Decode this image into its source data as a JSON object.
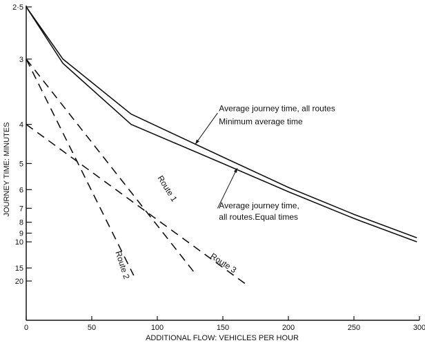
{
  "chart_data": {
    "type": "line",
    "xlabel": "ADDITIONAL FLOW: VEHICLES PER HOUR",
    "ylabel": "JOURNEY TIME: MINUTES",
    "xlim": [
      0,
      300
    ],
    "ylim": [
      2.5,
      20
    ],
    "y_scale": "reciprocal",
    "grid": false,
    "x_ticks": [
      0,
      50,
      100,
      150,
      200,
      250,
      300
    ],
    "x_tick_labels": [
      "0",
      "50",
      "100",
      "150",
      "200",
      "250",
      "300"
    ],
    "y_ticks": [
      2.5,
      3,
      4,
      5,
      6,
      7,
      8,
      9,
      10,
      15,
      20
    ],
    "y_tick_labels": [
      "2·5",
      "3",
      "4",
      "5",
      "6",
      "7",
      "8",
      "9",
      "10",
      "15",
      "20"
    ],
    "series": [
      {
        "name": "Route 1",
        "style": "dashed",
        "x": [
          0,
          130
        ],
        "y": [
          3,
          17.5
        ]
      },
      {
        "name": "Route 2",
        "style": "dashed",
        "x": [
          0,
          82
        ],
        "y": [
          3,
          17.5
        ]
      },
      {
        "name": "Route 3",
        "style": "dashed",
        "x": [
          0,
          168
        ],
        "y": [
          4,
          22
        ]
      },
      {
        "name": "Average journey time, all routes Minimum average time",
        "style": "solid",
        "x": [
          0,
          28,
          80,
          150,
          200,
          250,
          298
        ],
        "y": [
          2.5,
          3,
          3.8,
          4.8,
          5.9,
          7.4,
          9.5
        ]
      },
      {
        "name": "Average journey time, all routes.Equal times",
        "style": "solid",
        "x": [
          0,
          28,
          80,
          150,
          200,
          250,
          298
        ],
        "y": [
          2.5,
          3.05,
          4.0,
          5.0,
          6.1,
          7.7,
          10
        ]
      }
    ],
    "annotations": [
      {
        "text": "Route 1",
        "x": 100,
        "y": 5.5
      },
      {
        "text": "Route 2",
        "x": 68,
        "y": 11.5
      },
      {
        "text": "Route 3",
        "x": 140,
        "y": 12.5
      },
      {
        "text": "Average journey time, all routes",
        "x": 147,
        "y": 3.75
      },
      {
        "text": "Minimum average time",
        "x": 147,
        "y": 4.0
      },
      {
        "text": "Average journey time,",
        "x": 147,
        "y": 7.0
      },
      {
        "text": "all routes.Equal times",
        "x": 147,
        "y": 7.8
      }
    ]
  }
}
